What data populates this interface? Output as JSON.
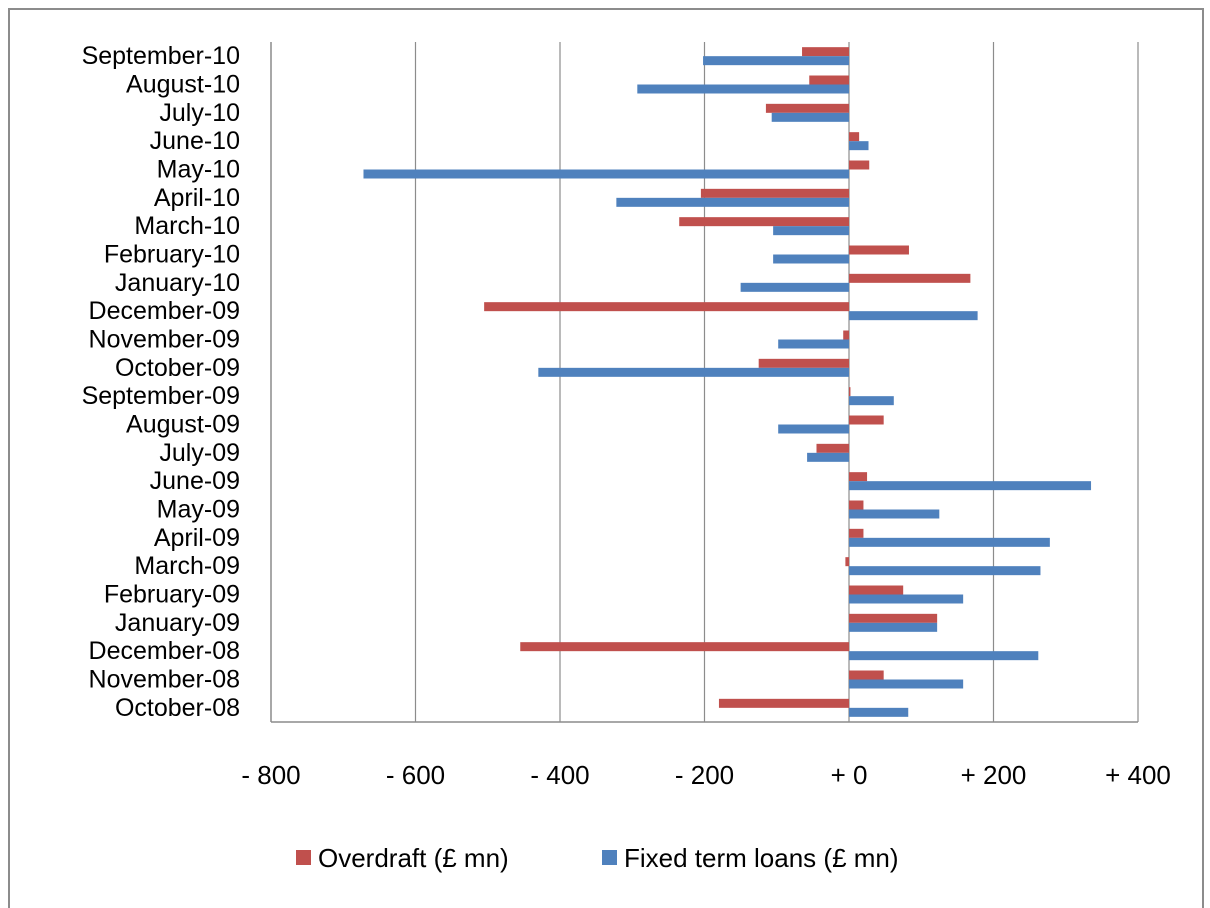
{
  "chart_data": {
    "type": "bar",
    "orientation": "horizontal",
    "categories": [
      "October-08",
      "November-08",
      "December-08",
      "January-09",
      "February-09",
      "March-09",
      "April-09",
      "May-09",
      "June-09",
      "July-09",
      "August-09",
      "September-09",
      "October-09",
      "November-09",
      "December-09",
      "January-10",
      "February-10",
      "March-10",
      "April-10",
      "May-10",
      "June-10",
      "July-10",
      "August-10",
      "September-10"
    ],
    "series": [
      {
        "name": "Overdraft (£ mn)",
        "color": "#c0504d",
        "values": [
          -180,
          48,
          -455,
          122,
          75,
          -5,
          20,
          20,
          25,
          -45,
          48,
          2,
          -125,
          -8,
          -505,
          168,
          83,
          -235,
          -205,
          28,
          14,
          -115,
          -55,
          -65
        ]
      },
      {
        "name": "Fixed term loans (£ mn)",
        "color": "#4f81bd",
        "values": [
          82,
          158,
          262,
          122,
          158,
          265,
          278,
          125,
          335,
          -58,
          -98,
          62,
          -430,
          -98,
          178,
          -150,
          -105,
          -105,
          -322,
          -672,
          27,
          -107,
          -293,
          -202
        ]
      }
    ],
    "xlim": [
      -800,
      400
    ],
    "xticks": [
      -800,
      -600,
      -400,
      -200,
      0,
      200,
      400
    ],
    "xtick_labels": [
      "- 800",
      "- 600",
      "- 400",
      "- 200",
      "+ 0",
      "+ 200",
      "+ 400"
    ],
    "grid": true,
    "legend_position": "bottom",
    "title": "",
    "xlabel": "",
    "ylabel": ""
  }
}
